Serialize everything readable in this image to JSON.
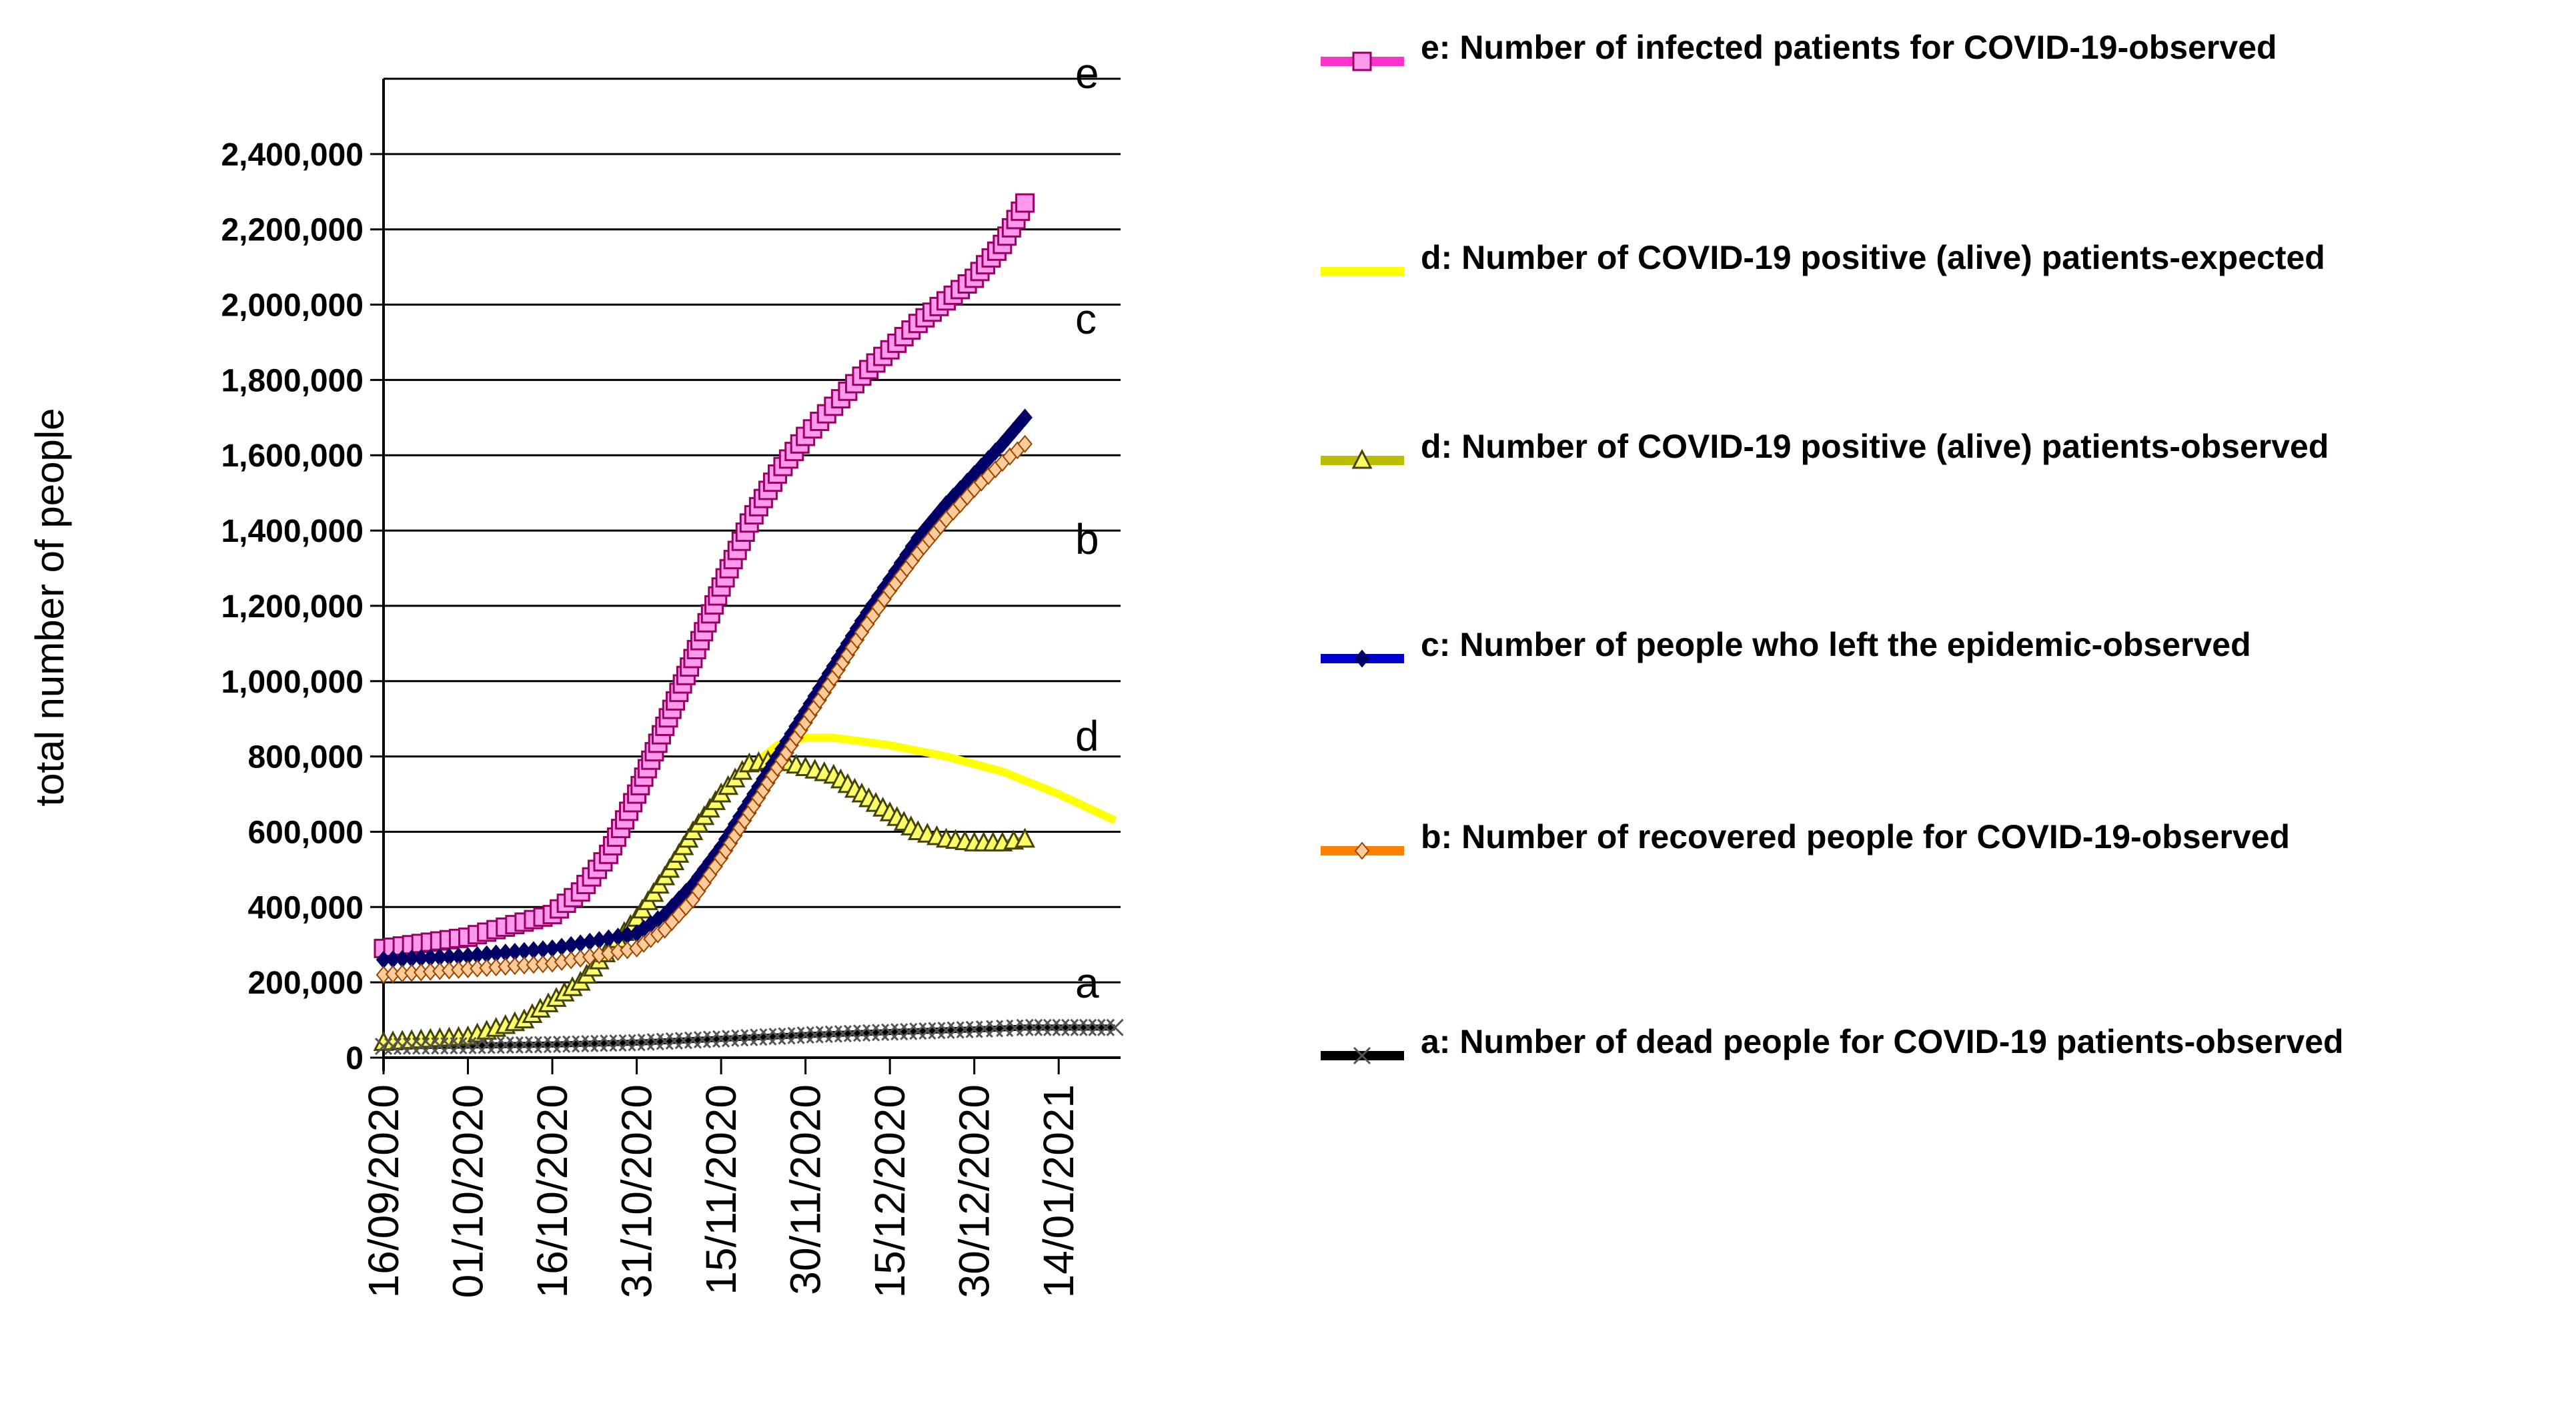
{
  "chart_data": {
    "type": "line",
    "ylabel": "total number of people",
    "xlabel": "",
    "ylim": [
      0,
      2600000
    ],
    "yticks": [
      {
        "value": 0,
        "label": "0"
      },
      {
        "value": 200000,
        "label": "200,000"
      },
      {
        "value": 400000,
        "label": "400,000"
      },
      {
        "value": 600000,
        "label": "600,000"
      },
      {
        "value": 800000,
        "label": "800,000"
      },
      {
        "value": 1000000,
        "label": "1,000,000"
      },
      {
        "value": 1200000,
        "label": "1,200,000"
      },
      {
        "value": 1400000,
        "label": "1,400,000"
      },
      {
        "value": 1600000,
        "label": "1,600,000"
      },
      {
        "value": 1800000,
        "label": "1,800,000"
      },
      {
        "value": 2000000,
        "label": "2,000,000"
      },
      {
        "value": 2200000,
        "label": "2,200,000"
      },
      {
        "value": 2400000,
        "label": "2,400,000"
      }
    ],
    "xlim": [
      "2020-09-16",
      "2021-01-25"
    ],
    "xticks": [
      "16/09/2020",
      "01/10/2020",
      "16/10/2020",
      "31/10/2020",
      "15/11/2020",
      "30/11/2020",
      "15/12/2020",
      "30/12/2020",
      "14/01/2021"
    ],
    "grid": true,
    "legend_position": "right",
    "series": [
      {
        "name": "e: Number of infected patients for COVID-19-observed",
        "curve_label": "e",
        "color": "#ff33cc",
        "marker": "square",
        "x": [
          "2020-09-16",
          "2020-10-01",
          "2020-10-16",
          "2020-10-21",
          "2020-10-26",
          "2020-10-31",
          "2020-11-05",
          "2020-11-10",
          "2020-11-15",
          "2020-11-20",
          "2020-11-25",
          "2020-11-30",
          "2020-12-05",
          "2020-12-10",
          "2020-12-15",
          "2020-12-20",
          "2020-12-25",
          "2020-12-30",
          "2021-01-04",
          "2021-01-08"
        ],
        "y": [
          290000,
          320000,
          380000,
          440000,
          540000,
          700000,
          880000,
          1060000,
          1250000,
          1420000,
          1550000,
          1650000,
          1730000,
          1810000,
          1880000,
          1950000,
          2010000,
          2070000,
          2160000,
          2270000
        ]
      },
      {
        "name": "d: Number of COVID-19 positive (alive) patients-expected",
        "curve_label": "d",
        "color": "#ffff00",
        "marker": "none",
        "x": [
          "2020-09-16",
          "2020-10-01",
          "2020-10-11",
          "2020-10-21",
          "2020-10-31",
          "2020-11-05",
          "2020-11-10",
          "2020-11-15",
          "2020-11-20",
          "2020-11-25",
          "2020-11-30",
          "2020-12-05",
          "2020-12-15",
          "2020-12-25",
          "2021-01-04",
          "2021-01-14",
          "2021-01-24"
        ],
        "y": [
          40000,
          55000,
          100000,
          200000,
          370000,
          480000,
          590000,
          690000,
          770000,
          830000,
          850000,
          850000,
          830000,
          800000,
          760000,
          700000,
          630000
        ]
      },
      {
        "name": "d: Number of COVID-19 positive (alive) patients-observed",
        "color": "#bdbd00",
        "marker": "triangle",
        "x": [
          "2020-09-16",
          "2020-10-01",
          "2020-10-11",
          "2020-10-21",
          "2020-10-31",
          "2020-11-05",
          "2020-11-10",
          "2020-11-15",
          "2020-11-20",
          "2020-11-25",
          "2020-11-30",
          "2020-12-05",
          "2020-12-10",
          "2020-12-15",
          "2020-12-20",
          "2020-12-25",
          "2020-12-30",
          "2021-01-04",
          "2021-01-08"
        ],
        "y": [
          40000,
          55000,
          100000,
          200000,
          370000,
          480000,
          600000,
          700000,
          780000,
          790000,
          770000,
          750000,
          700000,
          650000,
          600000,
          580000,
          570000,
          570000,
          580000
        ]
      },
      {
        "name": "c: Number of people who left the epidemic-observed",
        "curve_label": "c",
        "color": "#0000cc",
        "marker": "diamond",
        "x": [
          "2020-09-16",
          "2020-10-01",
          "2020-10-16",
          "2020-10-31",
          "2020-11-05",
          "2020-11-10",
          "2020-11-15",
          "2020-11-20",
          "2020-11-25",
          "2020-11-30",
          "2020-12-05",
          "2020-12-10",
          "2020-12-15",
          "2020-12-20",
          "2020-12-25",
          "2020-12-30",
          "2021-01-04",
          "2021-01-08"
        ],
        "y": [
          260000,
          270000,
          290000,
          330000,
          380000,
          460000,
          560000,
          680000,
          800000,
          920000,
          1040000,
          1160000,
          1270000,
          1380000,
          1470000,
          1550000,
          1630000,
          1700000
        ]
      },
      {
        "name": "b: Number of recovered people for COVID-19-observed",
        "curve_label": "b",
        "color": "#ff8000",
        "marker": "diamond-open",
        "x": [
          "2020-09-16",
          "2020-10-01",
          "2020-10-16",
          "2020-10-31",
          "2020-11-05",
          "2020-11-10",
          "2020-11-15",
          "2020-11-20",
          "2020-11-25",
          "2020-11-30",
          "2020-12-05",
          "2020-12-10",
          "2020-12-15",
          "2020-12-20",
          "2020-12-25",
          "2020-12-30",
          "2021-01-04",
          "2021-01-08"
        ],
        "y": [
          220000,
          235000,
          250000,
          290000,
          340000,
          420000,
          530000,
          650000,
          770000,
          890000,
          1010000,
          1130000,
          1240000,
          1340000,
          1430000,
          1510000,
          1580000,
          1630000
        ]
      },
      {
        "name": "a: Number of dead people for COVID-19 patients-observed",
        "curve_label": "a",
        "color": "#000000",
        "marker": "x",
        "x": [
          "2020-09-16",
          "2020-10-01",
          "2020-10-16",
          "2020-10-31",
          "2020-11-15",
          "2020-11-30",
          "2020-12-15",
          "2020-12-30",
          "2021-01-08",
          "2021-01-24"
        ],
        "y": [
          30000,
          32000,
          35000,
          40000,
          50000,
          60000,
          68000,
          75000,
          80000,
          80000
        ]
      }
    ]
  }
}
